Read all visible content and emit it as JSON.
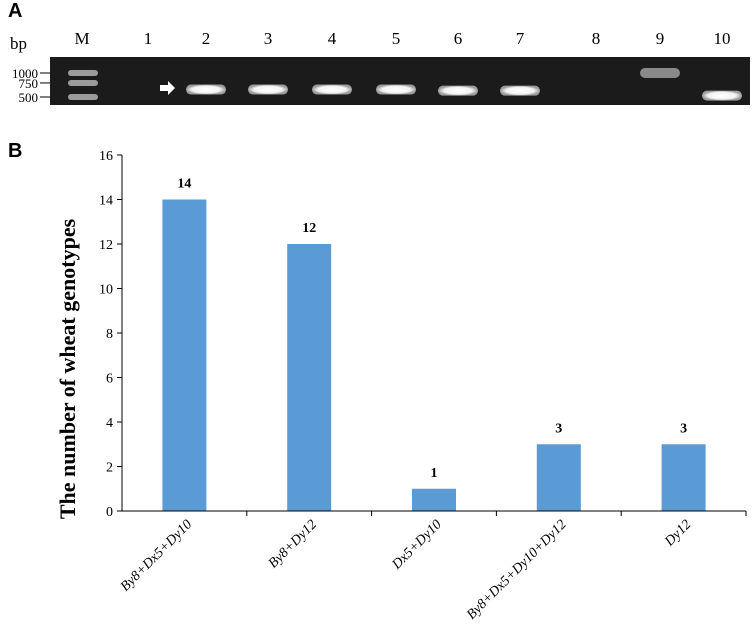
{
  "panel_a": {
    "label": "A",
    "unit": "bp",
    "marker_lane": "M",
    "lanes": [
      "1",
      "2",
      "3",
      "4",
      "5",
      "6",
      "7",
      "8",
      "9",
      "10"
    ],
    "ladder": [
      "1000",
      "750",
      "500"
    ],
    "bands": [
      {
        "lane": "1",
        "size_bp": null
      },
      {
        "lane": "2",
        "size_bp": 620
      },
      {
        "lane": "3",
        "size_bp": 620
      },
      {
        "lane": "4",
        "size_bp": 620
      },
      {
        "lane": "5",
        "size_bp": 620
      },
      {
        "lane": "6",
        "size_bp": 600
      },
      {
        "lane": "7",
        "size_bp": 600
      },
      {
        "lane": "8",
        "size_bp": null
      },
      {
        "lane": "9",
        "size_bp": 1000
      },
      {
        "lane": "10",
        "size_bp": 520
      }
    ]
  },
  "panel_b": {
    "label": "B"
  },
  "chart_data": {
    "type": "bar",
    "categories": [
      "By8+Dx5+Dy10",
      "By8+Dy12",
      "Dx5+Dy10",
      "By8+Dx5+Dy10+Dy12",
      "Dy12"
    ],
    "values": [
      14,
      12,
      1,
      3,
      3
    ],
    "data_labels": [
      "14",
      "12",
      "1",
      "3",
      "3"
    ],
    "ylabel": "The number of wheat genotypes",
    "ylim": [
      0,
      16
    ],
    "yticks": [
      "0",
      "2",
      "4",
      "6",
      "8",
      "10",
      "12",
      "14",
      "16"
    ],
    "bar_color": "#5b9bd5",
    "grid": false,
    "legend": "none"
  }
}
